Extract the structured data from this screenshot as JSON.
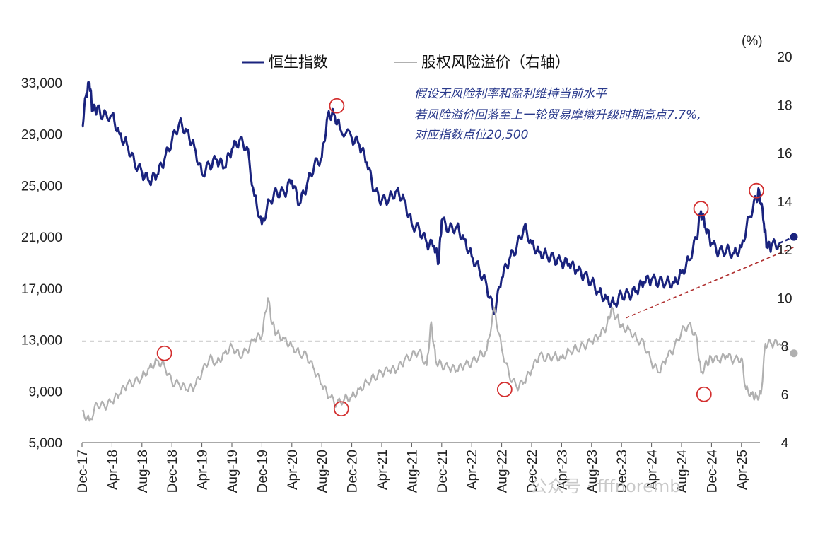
{
  "chart_data": {
    "type": "line",
    "x_start": "Dec-17",
    "x_ticks": [
      "Dec-17",
      "Apr-18",
      "Aug-18",
      "Dec-18",
      "Apr-19",
      "Aug-19",
      "Dec-19",
      "Apr-20",
      "Aug-20",
      "Dec-20",
      "Apr-21",
      "Aug-21",
      "Dec-21",
      "Apr-22",
      "Aug-22",
      "Dec-22",
      "Apr-23",
      "Aug-23",
      "Dec-23",
      "Apr-24",
      "Aug-24",
      "Dec-24",
      "Apr-25"
    ],
    "y_left": {
      "ticks": [
        "5,000",
        "9,000",
        "13,000",
        "17,000",
        "21,000",
        "25,000",
        "29,000",
        "33,000"
      ],
      "range": [
        5000,
        33000
      ]
    },
    "y_right": {
      "unit_label": "(%)",
      "ticks": [
        "4",
        "6",
        "8",
        "10",
        "12",
        "14",
        "16",
        "18",
        "20"
      ],
      "range": [
        4,
        20
      ]
    },
    "legend": [
      {
        "name": "恒生指数",
        "color": "#1a237e"
      },
      {
        "name": "股权风险溢价（右轴）",
        "color": "#b0b0b0"
      }
    ],
    "series": [
      {
        "name": "恒生指数",
        "axis": "left",
        "color": "#1a237e",
        "points": [
          [
            0,
            29600
          ],
          [
            0.3,
            32200
          ],
          [
            0.5,
            33000
          ],
          [
            0.7,
            30800
          ],
          [
            1,
            31000
          ],
          [
            1.4,
            30400
          ],
          [
            2,
            30500
          ],
          [
            2.5,
            29000
          ],
          [
            3,
            28200
          ],
          [
            3.5,
            26800
          ],
          [
            4,
            26000
          ],
          [
            4.5,
            25300
          ],
          [
            5,
            25800
          ],
          [
            5.5,
            27000
          ],
          [
            6,
            28500
          ],
          [
            6.5,
            29900
          ],
          [
            7,
            29200
          ],
          [
            7.5,
            28000
          ],
          [
            8,
            25900
          ],
          [
            8.5,
            26600
          ],
          [
            9,
            27000
          ],
          [
            9.5,
            26400
          ],
          [
            10,
            27800
          ],
          [
            10.5,
            28500
          ],
          [
            11,
            28000
          ],
          [
            11.5,
            24200
          ],
          [
            12,
            22000
          ],
          [
            12.5,
            23800
          ],
          [
            13,
            24500
          ],
          [
            13.5,
            24400
          ],
          [
            14,
            25400
          ],
          [
            14.5,
            23500
          ],
          [
            15,
            25000
          ],
          [
            15.5,
            26600
          ],
          [
            16,
            27200
          ],
          [
            16.4,
            30500
          ],
          [
            16.8,
            30600
          ],
          [
            17.2,
            29500
          ],
          [
            18,
            28700
          ],
          [
            18.5,
            28200
          ],
          [
            19,
            26800
          ],
          [
            19.5,
            24600
          ],
          [
            20,
            23800
          ],
          [
            20.5,
            24000
          ],
          [
            21,
            24600
          ],
          [
            21.5,
            23900
          ],
          [
            22,
            22000
          ],
          [
            22.5,
            21600
          ],
          [
            23,
            20500
          ],
          [
            23.5,
            20300
          ],
          [
            23.8,
            19000
          ],
          [
            24,
            22300
          ],
          [
            24.5,
            21600
          ],
          [
            25,
            21800
          ],
          [
            25.5,
            20800
          ],
          [
            26,
            19500
          ],
          [
            26.5,
            18500
          ],
          [
            27,
            17200
          ],
          [
            27.5,
            15000
          ],
          [
            28,
            17800
          ],
          [
            28.5,
            19200
          ],
          [
            29,
            20200
          ],
          [
            29.5,
            21800
          ],
          [
            30,
            20500
          ],
          [
            30.5,
            19800
          ],
          [
            31,
            19600
          ],
          [
            31.5,
            19300
          ],
          [
            32,
            19000
          ],
          [
            32.5,
            18900
          ],
          [
            33,
            18400
          ],
          [
            33.5,
            18000
          ],
          [
            34,
            17500
          ],
          [
            34.5,
            16700
          ],
          [
            35,
            16200
          ],
          [
            35.5,
            15800
          ],
          [
            36,
            16500
          ],
          [
            36.5,
            16500
          ],
          [
            37,
            16800
          ],
          [
            37.5,
            17500
          ],
          [
            38,
            17700
          ],
          [
            38.5,
            17500
          ],
          [
            39,
            17500
          ],
          [
            39.5,
            17400
          ],
          [
            40,
            18200
          ],
          [
            40.5,
            19200
          ],
          [
            41,
            20900
          ],
          [
            41.3,
            23000
          ],
          [
            41.6,
            21700
          ],
          [
            42,
            20500
          ],
          [
            42.5,
            19800
          ],
          [
            43,
            20000
          ],
          [
            43.5,
            19700
          ],
          [
            44,
            20200
          ],
          [
            44.5,
            22500
          ],
          [
            45,
            24000
          ],
          [
            45.2,
            24500
          ],
          [
            45.5,
            22000
          ],
          [
            45.7,
            20200
          ],
          [
            46,
            20300
          ],
          [
            46.5,
            20500
          ]
        ],
        "dashed_segment": [
          [
            46.5,
            20500
          ],
          [
            47.5,
            21000
          ]
        ],
        "end_marker": [
          47.5,
          21000
        ]
      },
      {
        "name": "股权风险溢价（右轴）",
        "axis": "right",
        "color": "#b0b0b0",
        "points": [
          [
            0,
            5.3
          ],
          [
            0.5,
            4.9
          ],
          [
            1,
            5.6
          ],
          [
            1.5,
            5.5
          ],
          [
            2,
            5.7
          ],
          [
            2.5,
            6.0
          ],
          [
            3,
            6.4
          ],
          [
            3.5,
            6.5
          ],
          [
            4,
            6.7
          ],
          [
            4.5,
            7.1
          ],
          [
            5,
            7.4
          ],
          [
            5.5,
            7.2
          ],
          [
            6,
            6.5
          ],
          [
            6.5,
            6.4
          ],
          [
            7,
            6.2
          ],
          [
            7.5,
            6.3
          ],
          [
            8,
            6.9
          ],
          [
            8.5,
            7.5
          ],
          [
            9,
            7.3
          ],
          [
            9.5,
            7.7
          ],
          [
            10,
            8.0
          ],
          [
            10.5,
            7.6
          ],
          [
            11,
            7.8
          ],
          [
            11.5,
            8.3
          ],
          [
            12,
            8.4
          ],
          [
            12.4,
            10.0
          ],
          [
            12.7,
            8.9
          ],
          [
            13,
            8.5
          ],
          [
            13.5,
            8.3
          ],
          [
            14,
            8.0
          ],
          [
            14.5,
            7.7
          ],
          [
            15,
            7.6
          ],
          [
            15.5,
            7.0
          ],
          [
            16,
            6.4
          ],
          [
            16.5,
            5.9
          ],
          [
            17,
            5.6
          ],
          [
            17.5,
            5.8
          ],
          [
            18,
            5.9
          ],
          [
            18.5,
            6.2
          ],
          [
            19,
            6.5
          ],
          [
            19.5,
            6.7
          ],
          [
            20,
            6.9
          ],
          [
            20.5,
            7.0
          ],
          [
            21,
            7.0
          ],
          [
            21.5,
            7.4
          ],
          [
            22,
            7.6
          ],
          [
            22.5,
            7.8
          ],
          [
            23,
            7.2
          ],
          [
            23.3,
            9.0
          ],
          [
            23.6,
            7.4
          ],
          [
            24,
            7.2
          ],
          [
            24.5,
            7.1
          ],
          [
            25,
            7.0
          ],
          [
            25.5,
            7.2
          ],
          [
            26,
            7.3
          ],
          [
            26.5,
            7.6
          ],
          [
            27,
            7.8
          ],
          [
            27.5,
            9.6
          ],
          [
            28,
            7.9
          ],
          [
            28.5,
            6.8
          ],
          [
            29,
            6.3
          ],
          [
            29.5,
            6.5
          ],
          [
            30,
            7.0
          ],
          [
            30.5,
            7.6
          ],
          [
            31,
            7.5
          ],
          [
            31.5,
            7.6
          ],
          [
            32,
            7.5
          ],
          [
            32.5,
            7.8
          ],
          [
            33,
            7.9
          ],
          [
            33.5,
            8.0
          ],
          [
            34,
            8.2
          ],
          [
            34.5,
            8.4
          ],
          [
            35,
            8.8
          ],
          [
            35.3,
            9.5
          ],
          [
            35.7,
            9.2
          ],
          [
            36,
            8.8
          ],
          [
            36.5,
            8.7
          ],
          [
            37,
            8.3
          ],
          [
            37.5,
            8.1
          ],
          [
            38,
            7.3
          ],
          [
            38.5,
            6.9
          ],
          [
            39,
            7.5
          ],
          [
            39.5,
            7.9
          ],
          [
            40,
            8.6
          ],
          [
            40.5,
            8.9
          ],
          [
            41,
            8.4
          ],
          [
            41.3,
            6.9
          ],
          [
            41.7,
            7.3
          ],
          [
            42,
            7.5
          ],
          [
            42.5,
            7.4
          ],
          [
            43,
            7.6
          ],
          [
            43.5,
            7.4
          ],
          [
            44,
            7.5
          ],
          [
            44.3,
            6.2
          ],
          [
            44.7,
            6.0
          ],
          [
            45,
            5.9
          ],
          [
            45.3,
            6.0
          ],
          [
            45.6,
            8.1
          ],
          [
            46,
            8.1
          ],
          [
            46.5,
            8.1
          ]
        ],
        "dashed_segment": [
          [
            46.5,
            8.1
          ],
          [
            47.5,
            7.7
          ]
        ],
        "end_marker": [
          47.5,
          7.7
        ]
      }
    ],
    "reference_line": {
      "axis": "right",
      "y": 8.2,
      "style": "dashed",
      "color": "#aaaaaa"
    },
    "trend_line": {
      "axis": "left",
      "from": [
        36.3,
        14700
      ],
      "to": [
        47.5,
        20200
      ],
      "style": "dashed",
      "color": "#b03030"
    },
    "circles": [
      {
        "axis": "left",
        "x": 17.0,
        "y": 31200
      },
      {
        "axis": "right",
        "x": 5.5,
        "y": 7.7
      },
      {
        "axis": "right",
        "x": 17.3,
        "y": 5.4
      },
      {
        "axis": "right",
        "x": 28.2,
        "y": 6.2
      },
      {
        "axis": "left",
        "x": 41.3,
        "y": 23200
      },
      {
        "axis": "left",
        "x": 45.0,
        "y": 24600
      },
      {
        "axis": "right",
        "x": 41.5,
        "y": 6.0
      }
    ],
    "annotation": [
      "假设无风险利率和盈利维持当前水平",
      "若风险溢价回落至上一轮贸易摩擦升级时期高点7.7%,",
      "对应指数点位20,500"
    ],
    "watermark": "公众号 · fffnoremb"
  }
}
